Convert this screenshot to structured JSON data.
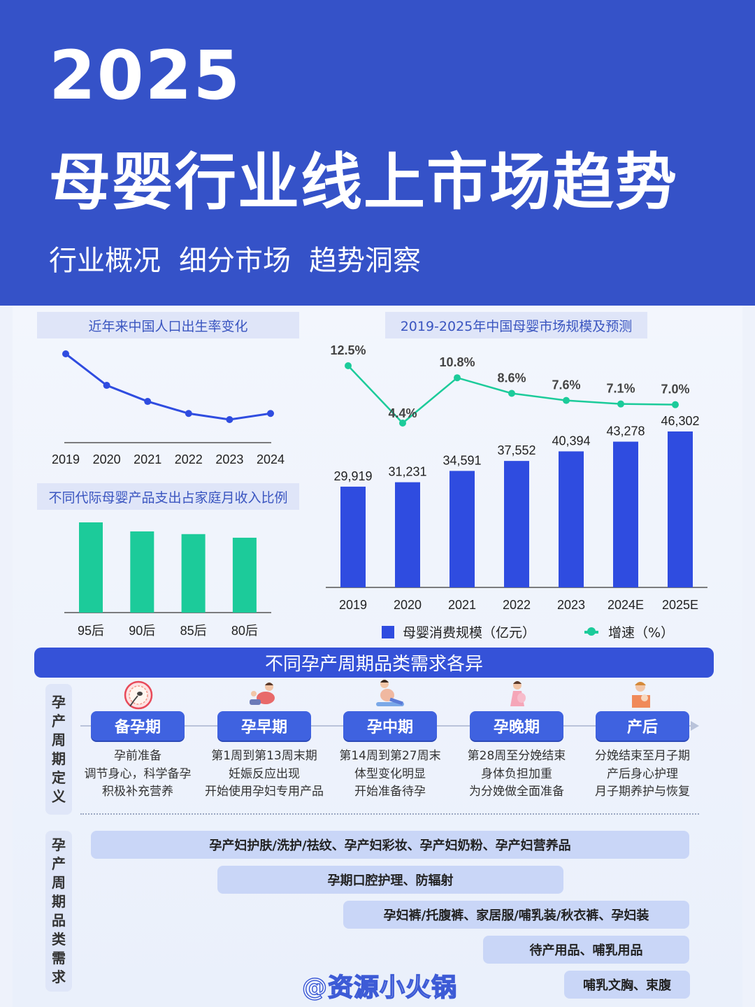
{
  "header": {
    "year": "2025",
    "title": "母婴行业线上市场趋势",
    "subtitles": [
      "行业概况",
      "细分市场",
      "趋势洞察"
    ]
  },
  "colors": {
    "primary": "#3552c8",
    "bar_blue": "#2f4ce0",
    "green": "#1ccb9a",
    "chip_bg": "#dfe5f8"
  },
  "charts": {
    "birth": {
      "title": "近年来中国人口出生率变化"
    },
    "generation": {
      "title": "不同代际母婴产品支出占家庭月收入比例"
    },
    "market": {
      "title": "2019-2025年中国母婴市场规模及预测",
      "legend_bar": "母婴消费规模（亿元）",
      "legend_line": "增速（%）"
    }
  },
  "chart_data": [
    {
      "type": "line",
      "title": "近年来中国人口出生率变化",
      "x": [
        "2019",
        "2020",
        "2021",
        "2022",
        "2023",
        "2024"
      ],
      "values": [
        10.48,
        8.52,
        7.52,
        6.77,
        6.39,
        6.77
      ],
      "color": "#2f4ce0",
      "grid": false
    },
    {
      "type": "bar",
      "title": "不同代际母婴产品支出占家庭月收入比例",
      "categories": [
        "95后",
        "90后",
        "85后",
        "80后"
      ],
      "values": [
        100,
        90,
        87,
        83
      ],
      "color": "#1ccb9a",
      "grid": false
    },
    {
      "type": "bar",
      "title": "2019-2025年中国母婴市场规模及预测",
      "categories": [
        "2019",
        "2020",
        "2021",
        "2022",
        "2023",
        "2024E",
        "2025E"
      ],
      "series": [
        {
          "name": "母婴消费规模（亿元）",
          "type": "bar",
          "color": "#2f4ce0",
          "values": [
            29919,
            31231,
            34591,
            37552,
            40394,
            43278,
            46302
          ],
          "labels": [
            "29,919",
            "31,231",
            "34,591",
            "37,552",
            "40,394",
            "43,278",
            "46,302"
          ]
        },
        {
          "name": "增速（%）",
          "type": "line",
          "color": "#1ccb9a",
          "values": [
            12.5,
            4.4,
            10.8,
            8.6,
            7.6,
            7.1,
            7.0
          ],
          "labels": [
            "12.5%",
            "4.4%",
            "10.8%",
            "8.6%",
            "7.6%",
            "7.1%",
            "7.0%"
          ]
        }
      ],
      "legend": "bottom",
      "grid": false
    }
  ],
  "cycle": {
    "title": "不同孕产周期品类需求各异",
    "def_label": [
      "孕",
      "产",
      "周",
      "期",
      "定",
      "义"
    ],
    "need_label": [
      "孕",
      "产",
      "周",
      "期",
      "品",
      "类",
      "需",
      "求"
    ],
    "stages": [
      {
        "name": "备孕期",
        "icon": "sperm-egg-icon",
        "lines": [
          "孕前准备",
          "调节身心，科学备孕",
          "积极补充营养"
        ]
      },
      {
        "name": "孕早期",
        "icon": "pregnant-woman-resting-icon",
        "lines": [
          "第1周到第13周末期",
          "妊娠反应出现",
          "开始使用孕妇专用产品"
        ]
      },
      {
        "name": "孕中期",
        "icon": "pregnant-woman-yoga-icon",
        "lines": [
          "第14周到第27周末",
          "体型变化明显",
          "开始准备待孕"
        ]
      },
      {
        "name": "孕晚期",
        "icon": "pregnant-woman-standing-icon",
        "lines": [
          "第28周至分娩结束",
          "身体负担加重",
          "为分娩做全面准备"
        ]
      },
      {
        "name": "产后",
        "icon": "mother-baby-icon",
        "lines": [
          "分娩结束至月子期",
          "产后身心护理",
          "月子期养护与恢复"
        ]
      }
    ],
    "needs": [
      "孕产妇护肤/洗护/祛纹、孕产妇彩妆、孕产妇奶粉、孕产妇营养品",
      "孕期口腔护理、防辐射",
      "孕妇裤/托腹裤、家居服/哺乳装/秋衣裤、孕妇装",
      "待产用品、哺乳用品",
      "哺乳文胸、束腹"
    ]
  },
  "watermark": "@资源小火锅"
}
